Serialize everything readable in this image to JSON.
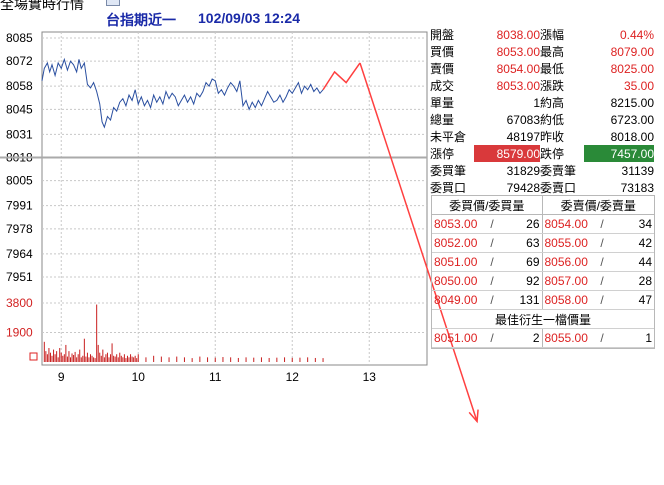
{
  "header": {
    "app_title_glyphs": "全場實時行情",
    "title": "台指期近一",
    "datetime": "102/09/03 12:24"
  },
  "colors": {
    "price_line": "#2a4fa0",
    "arrow": "#ff4040",
    "volume_bar": "#c81e1e",
    "reference_line": "#aaaaaa",
    "up": "#d22222",
    "limit_up_bg": "#d9393b",
    "limit_down_bg": "#2a8a38"
  },
  "chart_data": {
    "type": "line",
    "price_axis": {
      "ticks": [
        "8085",
        "8072",
        "8058",
        "8045",
        "8031",
        "8018",
        "8005",
        "7991",
        "7978",
        "7964",
        "7951"
      ],
      "reference": 8018,
      "ylim": [
        7951,
        8085
      ]
    },
    "volume_axis": {
      "ticks": [
        "3800",
        "1900"
      ],
      "ylim": [
        0,
        3800
      ]
    },
    "x_axis": {
      "ticks": [
        "9",
        "10",
        "11",
        "12",
        "13"
      ],
      "xlim": [
        8.75,
        13.75
      ]
    },
    "series": [
      {
        "x": [
          8.75,
          8.78,
          8.82,
          8.85,
          8.88,
          8.92,
          8.96,
          9.0,
          9.04,
          9.08,
          9.12,
          9.16,
          9.2,
          9.23,
          9.26,
          9.3,
          9.34,
          9.38,
          9.42,
          9.46,
          9.5,
          9.53,
          9.56,
          9.6,
          9.64,
          9.68,
          9.72,
          9.76,
          9.8,
          9.84,
          9.88,
          9.92,
          9.96,
          10.0,
          10.04,
          10.08,
          10.12,
          10.16,
          10.2,
          10.24,
          10.28,
          10.32,
          10.36,
          10.4,
          10.44,
          10.48,
          10.52,
          10.56,
          10.6,
          10.64,
          10.68,
          10.72,
          10.76,
          10.8,
          10.84,
          10.88,
          10.92,
          10.96,
          11.0,
          11.04,
          11.08,
          11.12,
          11.16,
          11.2,
          11.24,
          11.28,
          11.32,
          11.36,
          11.4,
          11.44,
          11.48,
          11.52,
          11.56,
          11.6,
          11.64,
          11.68,
          11.72,
          11.76,
          11.8,
          11.84,
          11.88,
          11.92,
          11.96,
          12.0,
          12.04,
          12.08,
          12.12,
          12.16,
          12.2,
          12.24,
          12.28,
          12.32,
          12.36,
          12.4
        ],
        "values": [
          8061,
          8068,
          8071,
          8066,
          8070,
          8064,
          8071,
          8068,
          8073,
          8067,
          8072,
          8070,
          8066,
          8073,
          8068,
          8071,
          8059,
          8057,
          8060,
          8055,
          8048,
          8038,
          8035,
          8041,
          8039,
          8046,
          8044,
          8049,
          8051,
          8047,
          8053,
          8050,
          8056,
          8048,
          8052,
          8047,
          8050,
          8046,
          8053,
          8049,
          8052,
          8048,
          8055,
          8051,
          8054,
          8052,
          8047,
          8050,
          8053,
          8049,
          8052,
          8048,
          8054,
          8052,
          8055,
          8060,
          8058,
          8062,
          8061,
          8054,
          8056,
          8053,
          8057,
          8060,
          8058,
          8055,
          8061,
          8047,
          8050,
          8045,
          8049,
          8046,
          8050,
          8047,
          8051,
          8055,
          8052,
          8049,
          8050,
          8053,
          8049,
          8052,
          8056,
          8054,
          8057,
          8060,
          8054,
          8058,
          8056,
          8059,
          8055,
          8057,
          8054,
          8056
        ]
      }
    ],
    "volume": {
      "x": [
        8.78,
        8.8,
        8.82,
        8.84,
        8.86,
        8.88,
        8.9,
        8.92,
        8.94,
        8.96,
        8.98,
        9.0,
        9.02,
        9.04,
        9.06,
        9.08,
        9.1,
        9.12,
        9.14,
        9.16,
        9.18,
        9.2,
        9.22,
        9.24,
        9.26,
        9.28,
        9.3,
        9.32,
        9.34,
        9.36,
        9.38,
        9.4,
        9.42,
        9.44,
        9.46,
        9.48,
        9.5,
        9.52,
        9.54,
        9.56,
        9.58,
        9.6,
        9.62,
        9.64,
        9.66,
        9.68,
        9.7,
        9.72,
        9.74,
        9.76,
        9.78,
        9.8,
        9.82,
        9.84,
        9.86,
        9.88,
        9.9,
        9.92,
        9.94,
        9.96,
        9.98,
        10.0,
        10.1,
        10.2,
        10.3,
        10.4,
        10.5,
        10.6,
        10.7,
        10.8,
        10.9,
        11.0,
        11.1,
        11.2,
        11.3,
        11.4,
        11.5,
        11.6,
        11.7,
        11.8,
        11.9,
        12.0,
        12.1,
        12.2,
        12.3,
        12.4
      ],
      "values": [
        1300,
        700,
        500,
        900,
        600,
        400,
        800,
        500,
        700,
        300,
        900,
        600,
        400,
        500,
        1100,
        350,
        700,
        300,
        550,
        450,
        650,
        300,
        500,
        800,
        300,
        400,
        1500,
        350,
        600,
        300,
        500,
        400,
        300,
        250,
        3700,
        1100,
        600,
        400,
        800,
        300,
        500,
        600,
        300,
        500,
        1200,
        400,
        350,
        500,
        300,
        600,
        400,
        300,
        500,
        250,
        400,
        300,
        500,
        350,
        300,
        400,
        250,
        500,
        300,
        400,
        350,
        300,
        350,
        300,
        250,
        350,
        300,
        280,
        320,
        300,
        260,
        300,
        280,
        300,
        260,
        280,
        300,
        270,
        280,
        300,
        260,
        250
      ]
    }
  },
  "annotation": {
    "zigzag_points": [
      [
        12.4,
        8056
      ],
      [
        12.55,
        8066
      ],
      [
        12.7,
        8060
      ],
      [
        12.88,
        8071
      ]
    ],
    "arrow_end": [
      14.4,
      7870
    ]
  },
  "quote": [
    {
      "l1": "開盤",
      "v1": "8038.00",
      "c1": "red",
      "l2": "漲幅",
      "v2": "0.44%",
      "c2": "red"
    },
    {
      "l1": "買價",
      "v1": "8053.00",
      "c1": "red",
      "l2": "最高",
      "v2": "8079.00",
      "c2": "red"
    },
    {
      "l1": "賣價",
      "v1": "8054.00",
      "c1": "red",
      "l2": "最低",
      "v2": "8025.00",
      "c2": "red"
    },
    {
      "l1": "成交",
      "v1": "8053.00",
      "c1": "red",
      "l2": "漲跌",
      "v2": "35.00",
      "c2": "red"
    },
    {
      "l1": "單量",
      "v1": "1",
      "c1": "blk",
      "l2": "約高",
      "v2": "8215.00",
      "c2": "blk"
    },
    {
      "l1": "總量",
      "v1": "67083",
      "c1": "blk",
      "l2": "約低",
      "v2": "6723.00",
      "c2": "blk"
    },
    {
      "l1": "未平倉",
      "v1": "48197",
      "c1": "blk",
      "l2": "昨收",
      "v2": "8018.00",
      "c2": "blk"
    },
    {
      "l1": "漲停",
      "v1": "8579.00",
      "c1": "hl-red",
      "l2": "跌停",
      "v2": "7457.00",
      "c2": "hl-green"
    },
    {
      "l1": "委買筆",
      "v1": "31829",
      "c1": "blk",
      "l2": "委賣筆",
      "v2": "31139",
      "c2": "blk"
    },
    {
      "l1": "委買口",
      "v1": "79428",
      "c1": "blk",
      "l2": "委賣口",
      "v2": "73183",
      "c2": "blk"
    }
  ],
  "book": {
    "bid_header": "委買價/委買量",
    "ask_header": "委賣價/委賣量",
    "slash": "/",
    "rows": [
      {
        "bp": "8053.00",
        "bq": "26",
        "ap": "8054.00",
        "aq": "34"
      },
      {
        "bp": "8052.00",
        "bq": "63",
        "ap": "8055.00",
        "aq": "42"
      },
      {
        "bp": "8051.00",
        "bq": "69",
        "ap": "8056.00",
        "aq": "44"
      },
      {
        "bp": "8050.00",
        "bq": "92",
        "ap": "8057.00",
        "aq": "28"
      },
      {
        "bp": "8049.00",
        "bq": "131",
        "ap": "8058.00",
        "aq": "47"
      }
    ],
    "best_header": "最佳衍生一檔價量",
    "best": {
      "bp": "8051.00",
      "bq": "2",
      "ap": "8055.00",
      "aq": "1"
    }
  }
}
